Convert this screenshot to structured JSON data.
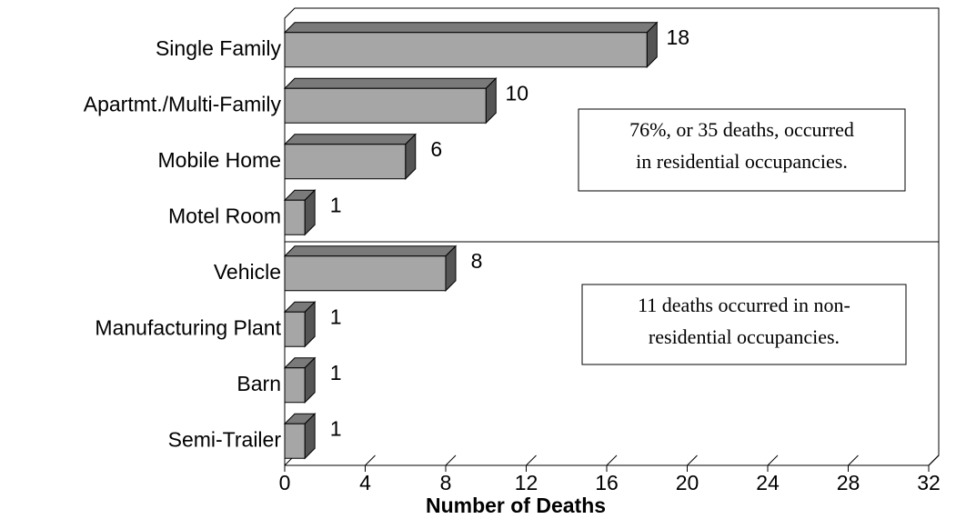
{
  "chart_data": {
    "type": "bar",
    "orientation": "horizontal",
    "categories": [
      "Single Family",
      "Apartmt./Multi-Family",
      "Mobile Home",
      "Motel Room",
      "Vehicle",
      "Manufacturing Plant",
      "Barn",
      "Semi-Trailer"
    ],
    "values": [
      18,
      10,
      6,
      1,
      8,
      1,
      1,
      1
    ],
    "color": "#a6a6a6",
    "xlim": [
      0,
      32
    ],
    "xticks": [
      0,
      4,
      8,
      12,
      16,
      20,
      24,
      28,
      32
    ],
    "x_label": "Number of Deaths",
    "annotations": [
      {
        "lines": [
          "76%, or 35 deaths, occurred",
          "in residential occupancies."
        ]
      },
      {
        "lines": [
          "11 deaths occurred in non-",
          "residential occupancies."
        ]
      }
    ]
  }
}
